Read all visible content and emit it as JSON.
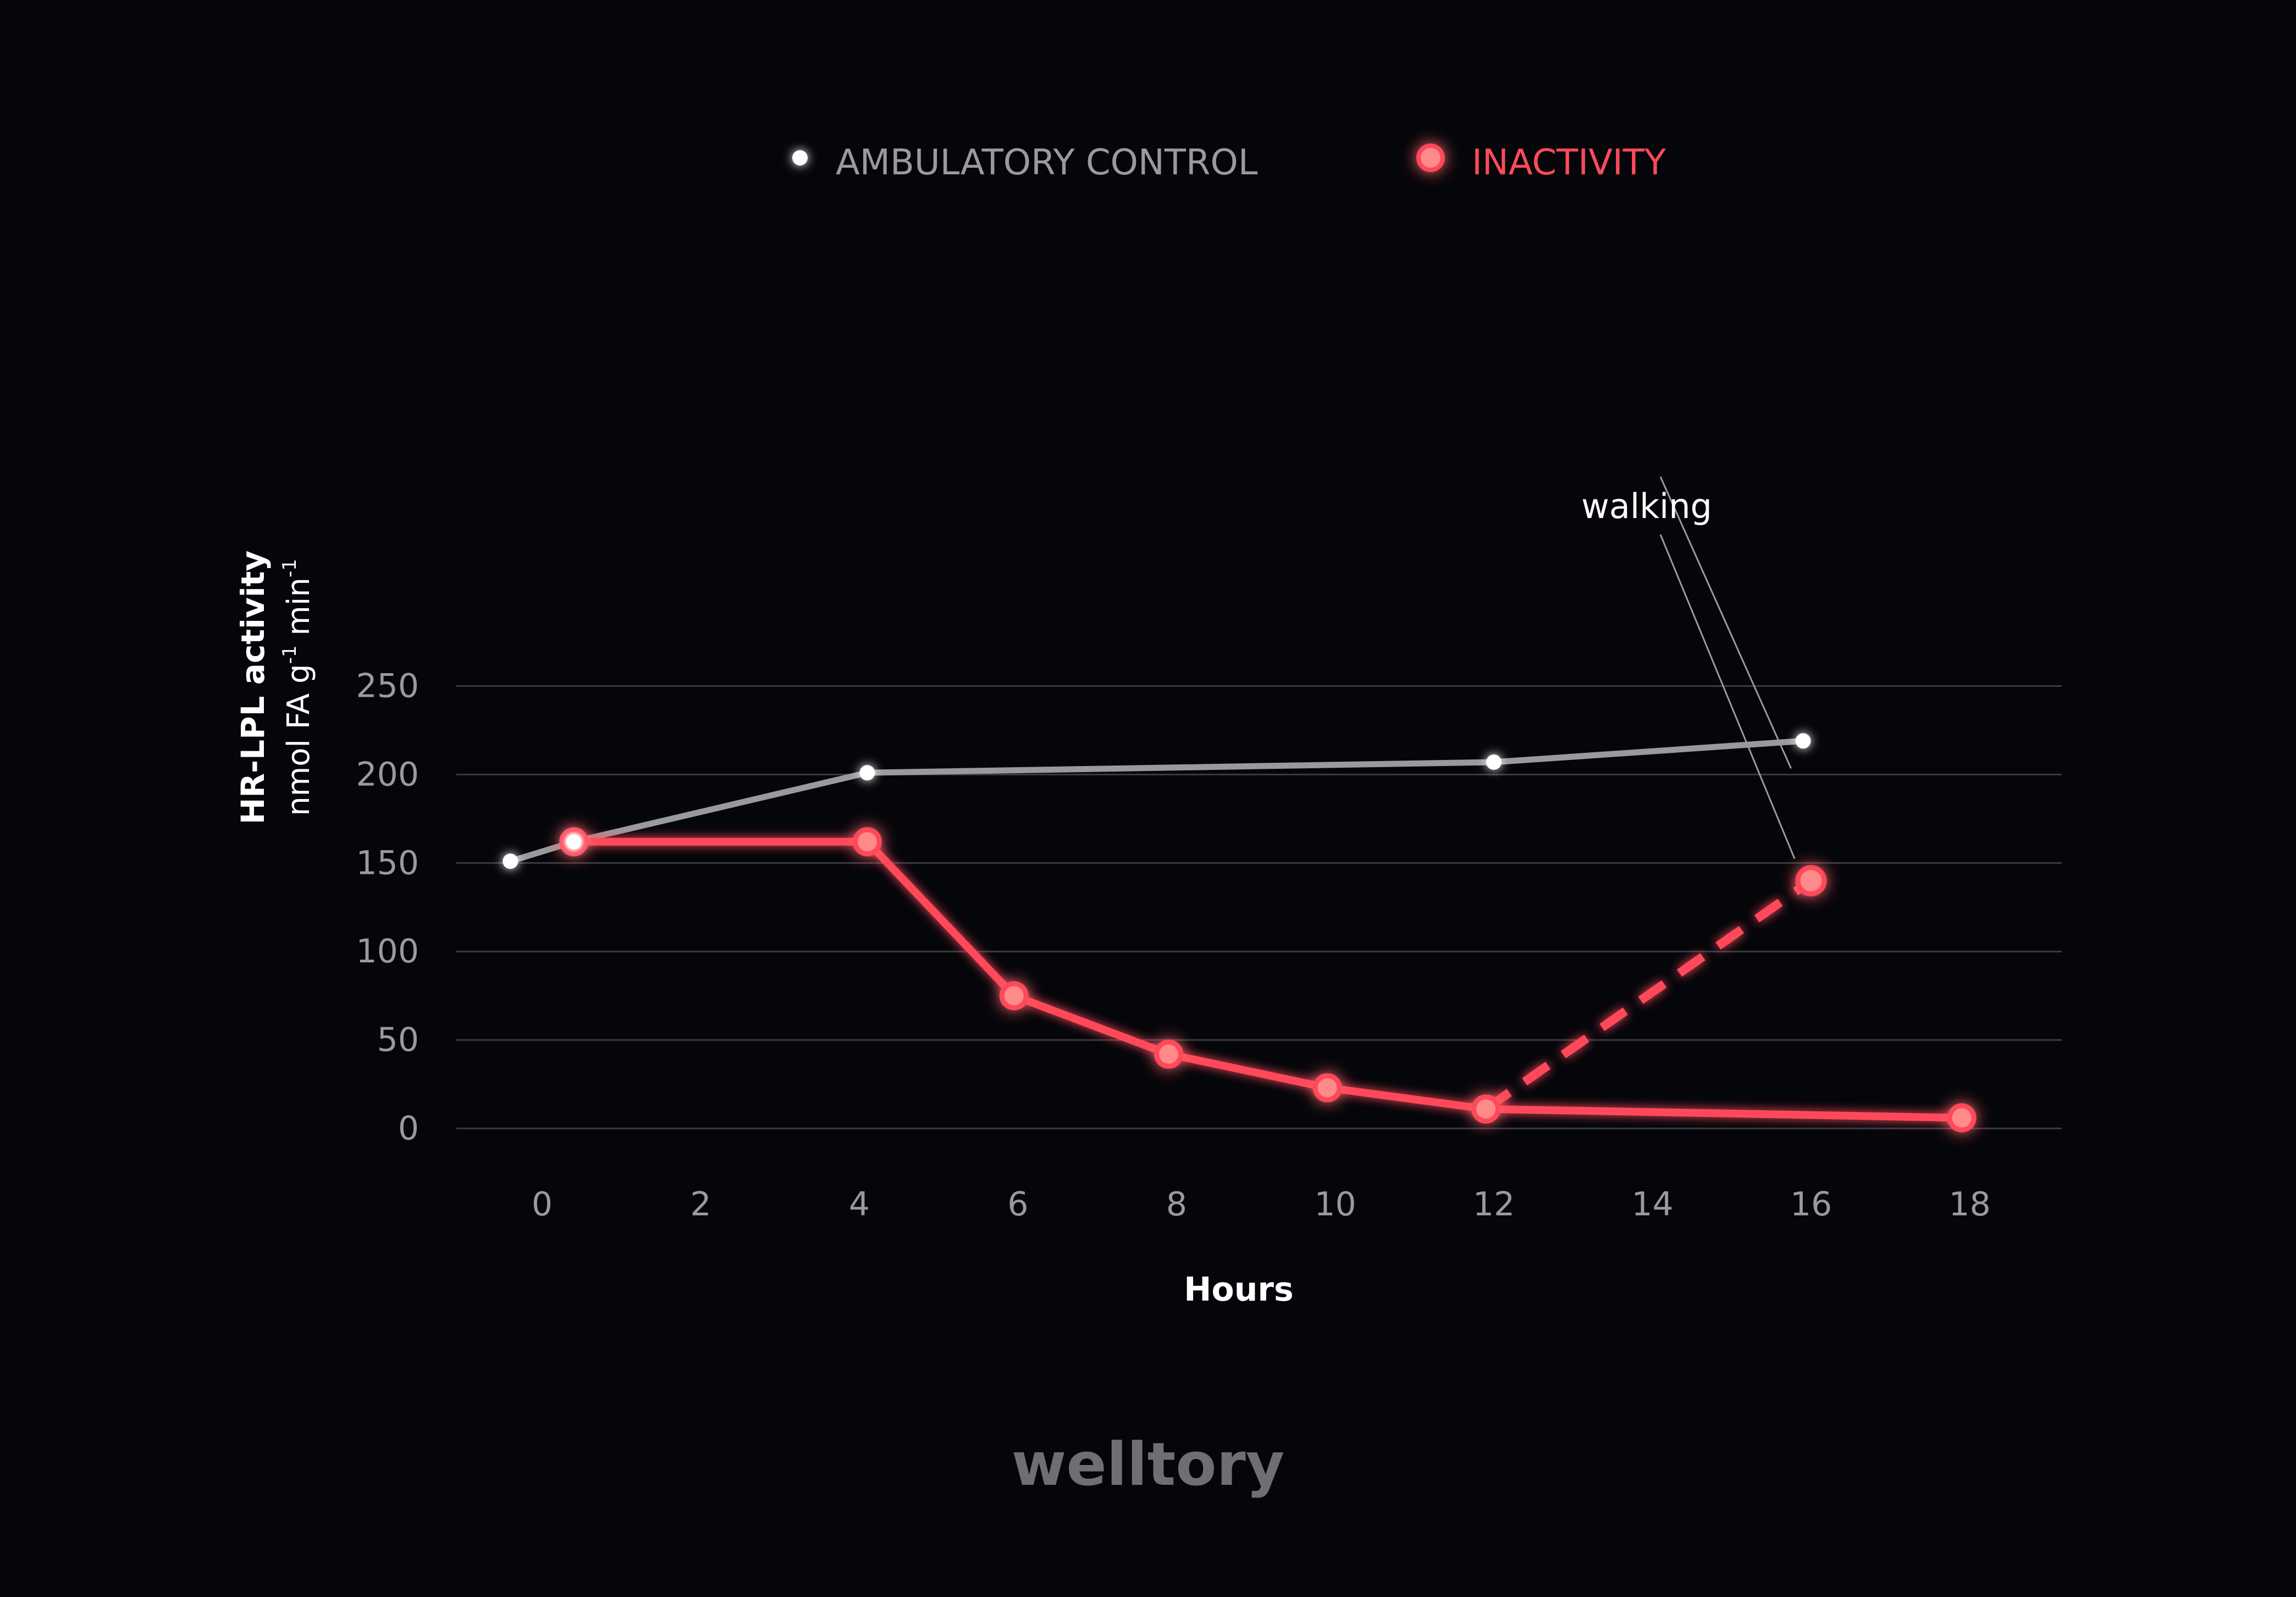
{
  "brand": "welltory",
  "colors": {
    "background": "#05060a",
    "ambulatory": "#9a9a9c",
    "ambulatory_point": "#ffffff",
    "inactivity": "#ff4a5a",
    "inactivity_point": "#ff8a8a",
    "grid": "#3a3b40",
    "tick": "#9a9a9c",
    "label": "#ffffff",
    "brand": "#6f6f71"
  },
  "chart_data": {
    "type": "line",
    "title": "",
    "xlabel": "Hours",
    "ylabel_main": "HR-LPL activity",
    "ylabel_units": {
      "prefix": "nmol FA g",
      "sup1": "-1",
      "mid": " min",
      "sup2": "-1"
    },
    "xlim": [
      -1,
      19
    ],
    "ylim": [
      0,
      250
    ],
    "xticks": [
      0,
      2,
      4,
      6,
      8,
      10,
      12,
      14,
      16,
      18
    ],
    "yticks": [
      0,
      50,
      100,
      150,
      200,
      250
    ],
    "grid": true,
    "legend_position": "top-center",
    "series": [
      {
        "name": "AMBULATORY CONTROL",
        "x": [
          -0.4,
          0.4,
          4.1,
          12.0,
          15.9
        ],
        "y": [
          151,
          162,
          201,
          207,
          219
        ]
      },
      {
        "name": "INACTIVITY",
        "x": [
          0.4,
          4.1,
          5.95,
          7.9,
          9.9,
          11.9,
          17.9
        ],
        "y": [
          162,
          162,
          75,
          42,
          23,
          11,
          6
        ]
      }
    ],
    "walking_segment": {
      "x": [
        11.9,
        16.0
      ],
      "y": [
        11,
        140
      ]
    },
    "walking_point": {
      "x": 16.0,
      "y": 140
    },
    "annotation": {
      "text": "walking"
    }
  }
}
